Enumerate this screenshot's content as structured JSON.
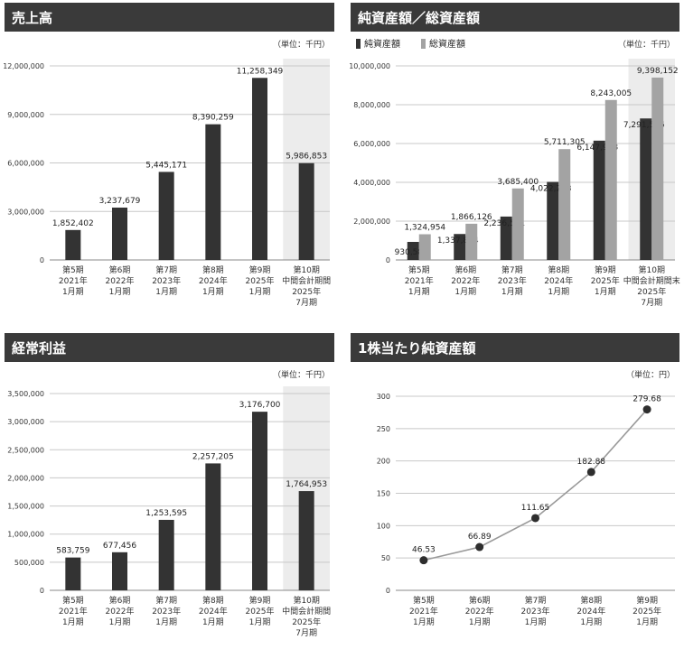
{
  "chart_data": [
    {
      "id": "sales",
      "type": "bar",
      "title": "売上高",
      "unit": "（単位：千円）",
      "categories": [
        [
          "第5期",
          "2021年",
          "1月期"
        ],
        [
          "第6期",
          "2022年",
          "1月期"
        ],
        [
          "第7期",
          "2023年",
          "1月期"
        ],
        [
          "第8期",
          "2024年",
          "1月期"
        ],
        [
          "第9期",
          "2025年",
          "1月期"
        ],
        [
          "第10期",
          "中間会計期間",
          "2025年",
          "7月期"
        ]
      ],
      "series": [
        {
          "values": [
            1852402,
            3237679,
            5445171,
            8390259,
            11258349,
            5986853
          ],
          "labels": [
            "1,852,402",
            "3,237,679",
            "5,445,171",
            "8,390,259",
            "11,258,349",
            "5,986,853"
          ]
        }
      ],
      "yticks": [
        0,
        3000000,
        6000000,
        9000000,
        12000000
      ],
      "ytick_labels": [
        "0",
        "3,000,000",
        "6,000,000",
        "9,000,000",
        "12,000,000"
      ],
      "ylim": [
        0,
        12000000
      ],
      "highlight_last": true,
      "grid": true
    },
    {
      "id": "assets",
      "type": "bar",
      "title": "純資産額／総資産額",
      "unit": "（単位：千円）",
      "categories": [
        [
          "第5期",
          "2021年",
          "1月期"
        ],
        [
          "第6期",
          "2022年",
          "1月期"
        ],
        [
          "第7期",
          "2023年",
          "1月期"
        ],
        [
          "第8期",
          "2024年",
          "1月期"
        ],
        [
          "第9期",
          "2025年",
          "1月期"
        ],
        [
          "第10期",
          "中間会計期間末",
          "2025年",
          "7月期"
        ]
      ],
      "series": [
        {
          "name": "純資産額",
          "color": "#333333",
          "values": [
            930580,
            1337874,
            2236531,
            4022213,
            6147958,
            7291506
          ],
          "labels": [
            "930,580",
            "1,337,874",
            "2,236,531",
            "4,022,213",
            "6,147,958",
            "7,291,506"
          ]
        },
        {
          "name": "総資産額",
          "color": "#a3a3a3",
          "values": [
            1324954,
            1866126,
            3685400,
            5711305,
            8243005,
            9398152
          ],
          "labels": [
            "1,324,954",
            "1,866,126",
            "3,685,400",
            "5,711,305",
            "8,243,005",
            "9,398,152"
          ]
        }
      ],
      "yticks": [
        0,
        2000000,
        4000000,
        6000000,
        8000000,
        10000000
      ],
      "ytick_labels": [
        "0",
        "2,000,000",
        "4,000,000",
        "6,000,000",
        "8,000,000",
        "10,000,000"
      ],
      "ylim": [
        0,
        10000000
      ],
      "legend": "top-left",
      "highlight_last": true,
      "grid": true
    },
    {
      "id": "ordinary",
      "type": "bar",
      "title": "経常利益",
      "unit": "（単位：千円）",
      "categories": [
        [
          "第5期",
          "2021年",
          "1月期"
        ],
        [
          "第6期",
          "2022年",
          "1月期"
        ],
        [
          "第7期",
          "2023年",
          "1月期"
        ],
        [
          "第8期",
          "2024年",
          "1月期"
        ],
        [
          "第9期",
          "2025年",
          "1月期"
        ],
        [
          "第10期",
          "中間会計期間",
          "2025年",
          "7月期"
        ]
      ],
      "series": [
        {
          "values": [
            583759,
            677456,
            1253595,
            2257205,
            3176700,
            1764953
          ],
          "labels": [
            "583,759",
            "677,456",
            "1,253,595",
            "2,257,205",
            "3,176,700",
            "1,764,953"
          ]
        }
      ],
      "yticks": [
        0,
        500000,
        1000000,
        1500000,
        2000000,
        2500000,
        3000000,
        3500000
      ],
      "ytick_labels": [
        "0",
        "500,000",
        "1,000,000",
        "1,500,000",
        "2,000,000",
        "2,500,000",
        "3,000,000",
        "3,500,000"
      ],
      "ylim": [
        0,
        3500000
      ],
      "highlight_last": true,
      "grid": true
    },
    {
      "id": "bps",
      "type": "line",
      "title": "1株当たり純資産額",
      "unit": "（単位：円）",
      "categories": [
        [
          "第5期",
          "2021年",
          "1月期"
        ],
        [
          "第6期",
          "2022年",
          "1月期"
        ],
        [
          "第7期",
          "2023年",
          "1月期"
        ],
        [
          "第8期",
          "2024年",
          "1月期"
        ],
        [
          "第9期",
          "2025年",
          "1月期"
        ]
      ],
      "series": [
        {
          "values": [
            46.53,
            66.89,
            111.65,
            182.88,
            279.68
          ],
          "labels": [
            "46.53",
            "66.89",
            "111.65",
            "182.88",
            "279.68"
          ]
        }
      ],
      "yticks": [
        0,
        50,
        100,
        150,
        200,
        250,
        300
      ],
      "ytick_labels": [
        "0",
        "50",
        "100",
        "150",
        "200",
        "250",
        "300"
      ],
      "ylim": [
        0,
        300
      ],
      "highlight_last": false,
      "grid": true
    }
  ]
}
